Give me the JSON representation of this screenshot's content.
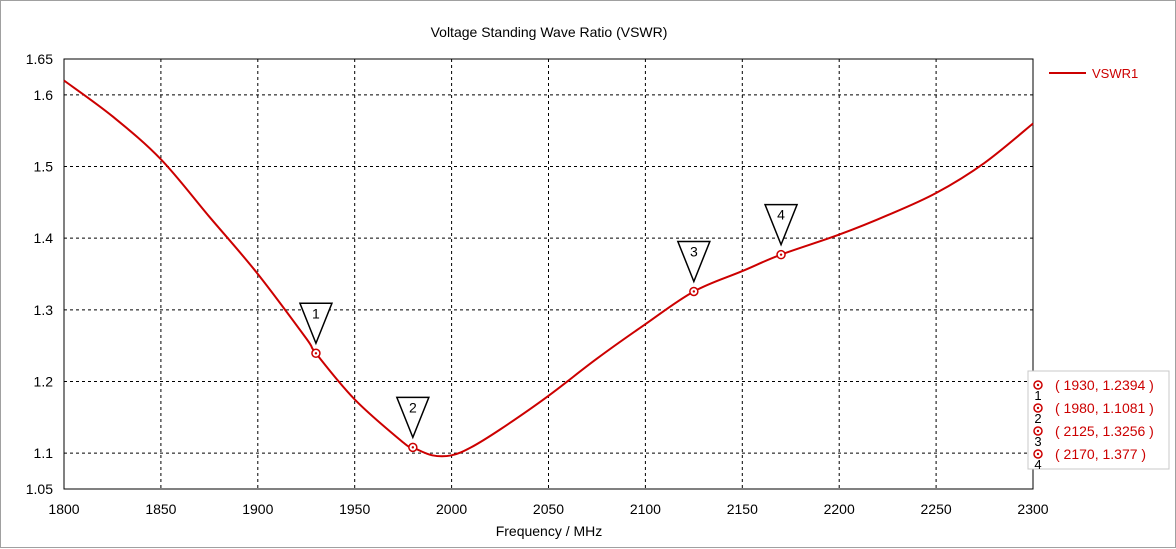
{
  "chart_data": {
    "type": "line",
    "title": "Voltage Standing Wave Ratio (VSWR)",
    "xlabel": "Frequency / MHz",
    "ylabel": "",
    "xlim": [
      1800,
      2300
    ],
    "ylim": [
      1.05,
      1.65
    ],
    "x_ticks": [
      "1800",
      "1850",
      "1900",
      "1950",
      "2000",
      "2050",
      "2100",
      "2150",
      "2200",
      "2250",
      "2300"
    ],
    "y_ticks": [
      "1.05",
      "1.1",
      "1.2",
      "1.3",
      "1.4",
      "1.5",
      "1.6",
      "1.65"
    ],
    "grid": true,
    "legend_position": "top-right",
    "series": [
      {
        "name": "VSWR1",
        "color": "#cc0000",
        "x": [
          1800,
          1825,
          1850,
          1875,
          1900,
          1925,
          1930,
          1950,
          1975,
          1980,
          1990,
          2000,
          2010,
          2025,
          2050,
          2075,
          2100,
          2125,
          2150,
          2170,
          2200,
          2225,
          2250,
          2275,
          2300
        ],
        "y": [
          1.62,
          1.57,
          1.51,
          1.43,
          1.35,
          1.26,
          1.2394,
          1.175,
          1.115,
          1.1081,
          1.097,
          1.097,
          1.108,
          1.133,
          1.18,
          1.232,
          1.28,
          1.3256,
          1.354,
          1.377,
          1.405,
          1.432,
          1.463,
          1.505,
          1.56
        ]
      }
    ],
    "markers": [
      {
        "id": "1",
        "x": 1930,
        "y": 1.2394,
        "label": "( 1930, 1.2394 )"
      },
      {
        "id": "2",
        "x": 1980,
        "y": 1.1081,
        "label": "( 1980, 1.1081 )"
      },
      {
        "id": "3",
        "x": 2125,
        "y": 1.3256,
        "label": "( 2125, 1.3256 )"
      },
      {
        "id": "4",
        "x": 2170,
        "y": 1.377,
        "label": "( 2170, 1.377 )"
      }
    ]
  }
}
